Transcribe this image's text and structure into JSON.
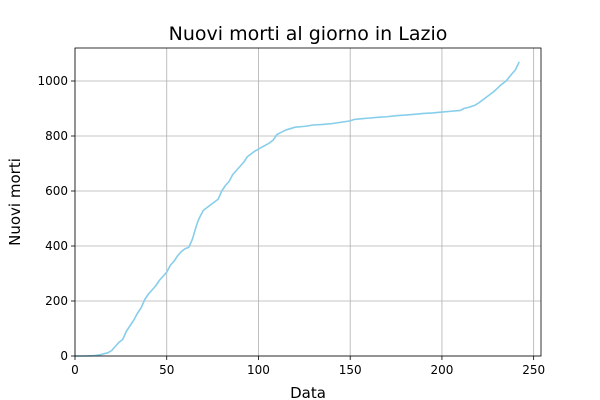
{
  "chart_data": {
    "type": "line",
    "title": "Nuovi morti al giorno in Lazio",
    "xlabel": "Data",
    "ylabel": "Nuovi morti",
    "xlim": [
      0,
      254
    ],
    "ylim": [
      0,
      1120
    ],
    "xticks": [
      0,
      50,
      100,
      150,
      200,
      250
    ],
    "yticks": [
      0,
      200,
      400,
      600,
      800,
      1000
    ],
    "grid": true,
    "color": "#87ceeb",
    "series": [
      {
        "x": [
          0,
          5,
          10,
          14,
          18,
          20,
          22,
          24,
          26,
          28,
          29,
          30,
          32,
          34,
          36,
          38,
          40,
          42,
          44,
          46,
          48,
          50,
          52,
          54,
          56,
          58,
          60,
          62,
          64,
          66,
          67,
          68,
          70,
          72,
          74,
          76,
          78,
          80,
          82,
          84,
          86,
          88,
          90,
          92,
          94,
          96,
          98,
          100,
          102,
          104,
          106,
          108,
          110,
          112,
          115,
          118,
          120,
          125,
          130,
          135,
          140,
          145,
          150,
          152,
          155,
          160,
          165,
          170,
          175,
          180,
          185,
          190,
          195,
          200,
          205,
          210,
          212,
          215,
          218,
          220,
          222,
          225,
          228,
          230,
          232,
          235,
          238,
          240,
          242
        ],
        "values": [
          0,
          0,
          1,
          5,
          12,
          20,
          35,
          50,
          60,
          90,
          100,
          110,
          130,
          155,
          175,
          205,
          225,
          240,
          255,
          275,
          290,
          305,
          330,
          345,
          365,
          380,
          390,
          395,
          425,
          470,
          490,
          505,
          530,
          540,
          550,
          560,
          570,
          600,
          620,
          635,
          660,
          675,
          690,
          705,
          725,
          735,
          745,
          752,
          760,
          767,
          775,
          785,
          805,
          812,
          822,
          828,
          832,
          835,
          840,
          842,
          845,
          850,
          855,
          860,
          862,
          865,
          868,
          870,
          874,
          876,
          879,
          882,
          884,
          887,
          890,
          893,
          900,
          905,
          912,
          920,
          930,
          945,
          960,
          972,
          985,
          1000,
          1025,
          1040,
          1068
        ]
      }
    ]
  }
}
